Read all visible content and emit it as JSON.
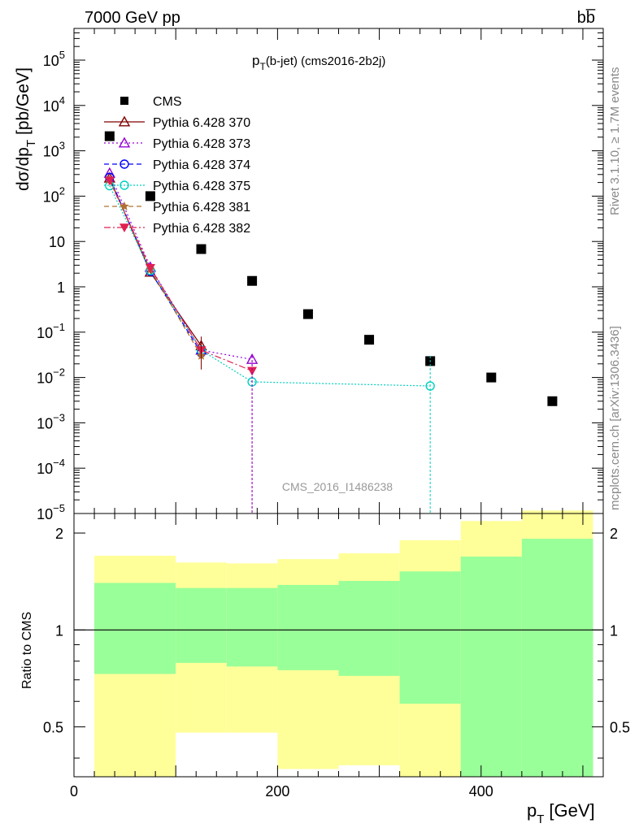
{
  "header": {
    "left": "7000 GeV pp",
    "right": "bb̅"
  },
  "plot_title_main": "p",
  "plot_title_sub": "T",
  "plot_title_rest": "(b-jet) (cms2016-2b2j)",
  "side_right_top": "Rivet 3.1.10, ≥ 1.7M events",
  "side_right_bottom": "mcplots.cern.ch [arXiv:1306.3436]",
  "watermark": "CMS_2016_I1486238",
  "ylabel_main": "dσ/dp",
  "ylabel_sub": "T",
  "ylabel_unit": "[pb/GeV]",
  "ratio_ylabel": "Ratio to CMS",
  "xlabel_main": "p",
  "xlabel_sub": "T",
  "xlabel_unit": "[GeV]",
  "x_ticks": [
    "0",
    "200",
    "400"
  ],
  "y_ticks_main": [
    {
      "base": "10",
      "exp": "5",
      "v": 100000.0
    },
    {
      "base": "10",
      "exp": "4",
      "v": 10000.0
    },
    {
      "base": "10",
      "exp": "3",
      "v": 1000.0
    },
    {
      "base": "10",
      "exp": "2",
      "v": 100.0
    },
    {
      "base": "10",
      "exp": "",
      "v": 10
    },
    {
      "base": "1",
      "exp": "",
      "v": 1
    },
    {
      "base": "10",
      "exp": "−1",
      "v": 0.1
    },
    {
      "base": "10",
      "exp": "−2",
      "v": 0.01
    },
    {
      "base": "10",
      "exp": "−3",
      "v": 0.001
    },
    {
      "base": "10",
      "exp": "−4",
      "v": 0.0001
    },
    {
      "base": "10",
      "exp": "−5",
      "v": 1e-05
    }
  ],
  "y_ticks_ratio": [
    "2",
    "1",
    "0.5"
  ],
  "chart_data": [
    {
      "type": "scatter",
      "panel": "main",
      "xlim": [
        0,
        520
      ],
      "ylim": [
        1e-05,
        500000.0
      ],
      "log_y": true,
      "series": [
        {
          "name": "CMS",
          "color": "#000000",
          "marker": "square",
          "x": [
            35,
            75,
            125,
            175,
            230,
            290,
            350,
            410,
            470
          ],
          "y": [
            2100,
            100,
            6.8,
            1.35,
            0.25,
            0.068,
            0.023,
            0.01,
            0.003
          ]
        },
        {
          "name": "Pythia 6.428 370",
          "color": "#800000",
          "marker": "triangle-up",
          "dash": "",
          "x": [
            35,
            75,
            125
          ],
          "y": [
            250,
            2.1,
            0.05
          ]
        },
        {
          "name": "Pythia 6.428 373",
          "color": "#9400d3",
          "marker": "triangle-up",
          "dash": "2,3",
          "x": [
            35,
            75,
            125,
            175
          ],
          "y": [
            320,
            2.7,
            0.04,
            0.025
          ]
        },
        {
          "name": "Pythia 6.428 374",
          "color": "#0000ff",
          "marker": "circle",
          "dash": "6,4",
          "x": [
            35,
            75,
            125
          ],
          "y": [
            260,
            2.2,
            0.035
          ]
        },
        {
          "name": "Pythia 6.428 375",
          "color": "#00d0c0",
          "marker": "circle",
          "dash": "2,2",
          "x": [
            35,
            75,
            125,
            175,
            350
          ],
          "y": [
            170,
            2.3,
            0.04,
            0.008,
            0.0065
          ]
        },
        {
          "name": "Pythia 6.428 381",
          "color": "#b07030",
          "marker": "star",
          "dash": "6,4",
          "x": [
            35,
            75,
            125
          ],
          "y": [
            230,
            2.4,
            0.03
          ]
        },
        {
          "name": "Pythia 6.428 382",
          "color": "#e02050",
          "marker": "triangle-down",
          "dash": "8,3,2,3",
          "x": [
            35,
            75,
            125,
            175
          ],
          "y": [
            220,
            2.6,
            0.04,
            0.014
          ]
        }
      ]
    },
    {
      "type": "area",
      "panel": "ratio",
      "xlim": [
        0,
        520
      ],
      "ylim": [
        0.35,
        2.3
      ],
      "log_y": true,
      "reference_line": 1,
      "bands": [
        {
          "x_lo": 20,
          "x_hi": 100,
          "yellow": [
            0.35,
            1.7
          ],
          "green": [
            0.73,
            1.4
          ]
        },
        {
          "x_lo": 100,
          "x_hi": 150,
          "yellow": [
            0.48,
            1.62
          ],
          "green": [
            0.79,
            1.35
          ]
        },
        {
          "x_lo": 150,
          "x_hi": 200,
          "yellow": [
            0.48,
            1.61
          ],
          "green": [
            0.77,
            1.35
          ]
        },
        {
          "x_lo": 200,
          "x_hi": 260,
          "yellow": [
            0.37,
            1.66
          ],
          "green": [
            0.75,
            1.38
          ]
        },
        {
          "x_lo": 260,
          "x_hi": 320,
          "yellow": [
            0.38,
            1.73
          ],
          "green": [
            0.72,
            1.42
          ]
        },
        {
          "x_lo": 320,
          "x_hi": 380,
          "yellow": [
            0.35,
            1.9
          ],
          "green": [
            0.59,
            1.52
          ]
        },
        {
          "x_lo": 380,
          "x_hi": 440,
          "yellow": [
            0.35,
            2.18
          ],
          "green": [
            0.35,
            1.69
          ]
        },
        {
          "x_lo": 440,
          "x_hi": 510,
          "yellow": [
            0.35,
            2.35
          ],
          "green": [
            0.35,
            1.92
          ]
        }
      ]
    }
  ],
  "colors": {
    "yellow": "#ffff99",
    "green": "#99ff99"
  }
}
